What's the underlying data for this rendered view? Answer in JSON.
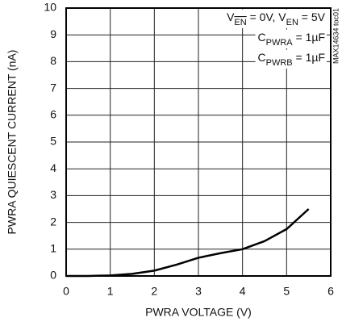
{
  "chart_data": {
    "type": "line",
    "xlabel": "PWRA VOLTAGE (V)",
    "ylabel": "PWRA QUIESCENT CURRENT (nA)",
    "side_note": "MAX14634 toc01",
    "annotations": [
      [
        {
          "text": "V"
        },
        {
          "text": "EN",
          "sub": true,
          "overline": true
        },
        {
          "text": " = 0V, V"
        },
        {
          "text": "EN",
          "sub": true
        },
        {
          "text": " = 5V"
        }
      ],
      [
        {
          "text": "C"
        },
        {
          "text": "PWRA",
          "sub": true
        },
        {
          "text": " = 1µF"
        }
      ],
      [
        {
          "text": "C"
        },
        {
          "text": "PWRB",
          "sub": true
        },
        {
          "text": " = 1µF"
        }
      ]
    ],
    "x": [
      0,
      0.5,
      1,
      1.5,
      2,
      2.5,
      3,
      3.5,
      4,
      4.5,
      5,
      5.5
    ],
    "series": [
      {
        "name": "PWRA",
        "color": "#000000",
        "values": [
          0,
          0,
          0.02,
          0.08,
          0.2,
          0.42,
          0.68,
          0.85,
          1.0,
          1.3,
          1.75,
          2.5
        ]
      }
    ],
    "xlim": [
      0,
      6
    ],
    "xticks": [
      0,
      1,
      2,
      3,
      4,
      5,
      6
    ],
    "ylim": [
      0,
      10
    ],
    "yticks": [
      0,
      1,
      2,
      3,
      4,
      5,
      6,
      7,
      8,
      9,
      10
    ],
    "grid": true
  }
}
